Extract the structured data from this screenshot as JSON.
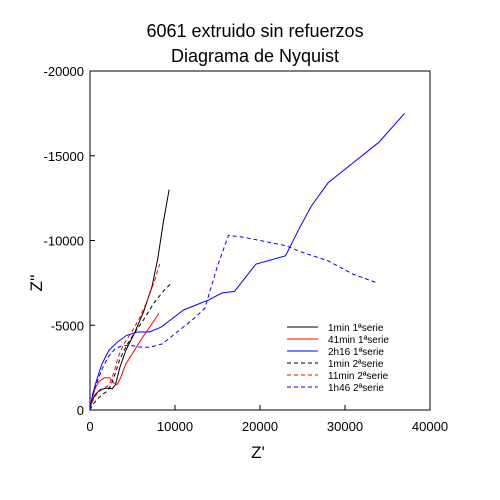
{
  "chart_data": {
    "type": "line",
    "title": "6061 extruido sin refuerzos",
    "subtitle": "Diagrama de Nyquist",
    "xlabel": "Z'",
    "ylabel": "Z''",
    "xlim": [
      0,
      40000
    ],
    "ylim": [
      0,
      -20000
    ],
    "x_ticks": [
      0,
      10000,
      20000,
      30000,
      40000
    ],
    "x_tick_labels": [
      "0",
      "10000",
      "20000",
      "30000",
      "40000"
    ],
    "y_ticks": [
      0,
      -5000,
      -10000,
      -15000,
      -20000
    ],
    "y_tick_labels": [
      "0",
      "-5000",
      "-10000",
      "-15000",
      "-20000"
    ],
    "grid": false,
    "legend_position": "bottom-right",
    "series": [
      {
        "name": "1min 1ªserie",
        "color": "#000000",
        "dash": "solid",
        "points": [
          [
            0,
            0
          ],
          [
            200,
            -500
          ],
          [
            600,
            -900
          ],
          [
            1200,
            -1200
          ],
          [
            2000,
            -1300
          ],
          [
            2600,
            -1250
          ],
          [
            3000,
            -1500
          ],
          [
            3500,
            -2500
          ],
          [
            4200,
            -3500
          ],
          [
            5200,
            -4500
          ],
          [
            6300,
            -5800
          ],
          [
            7300,
            -7300
          ],
          [
            8000,
            -9000
          ],
          [
            8600,
            -11000
          ],
          [
            9300,
            -13000
          ]
        ]
      },
      {
        "name": "41min 1ªserie",
        "color": "#ff0000",
        "dash": "solid",
        "points": [
          [
            0,
            0
          ],
          [
            200,
            -600
          ],
          [
            600,
            -1300
          ],
          [
            1100,
            -1700
          ],
          [
            1700,
            -1900
          ],
          [
            2300,
            -1900
          ],
          [
            2800,
            -1600
          ],
          [
            3200,
            -1500
          ],
          [
            3600,
            -1900
          ],
          [
            4200,
            -2700
          ],
          [
            5200,
            -3500
          ],
          [
            6200,
            -4300
          ],
          [
            7300,
            -5100
          ],
          [
            8100,
            -5700
          ]
        ]
      },
      {
        "name": "2h16 1ªserie",
        "color": "#0000ff",
        "dash": "solid",
        "points": [
          [
            0,
            0
          ],
          [
            300,
            -900
          ],
          [
            800,
            -1800
          ],
          [
            1400,
            -2700
          ],
          [
            2200,
            -3500
          ],
          [
            3200,
            -4000
          ],
          [
            4300,
            -4400
          ],
          [
            5600,
            -4600
          ],
          [
            7000,
            -4600
          ],
          [
            8400,
            -4900
          ],
          [
            9700,
            -5400
          ],
          [
            11000,
            -5900
          ],
          [
            12500,
            -6200
          ],
          [
            14000,
            -6500
          ],
          [
            15500,
            -6900
          ],
          [
            17000,
            -7000
          ],
          [
            19500,
            -8600
          ],
          [
            23000,
            -9100
          ],
          [
            24500,
            -10600
          ],
          [
            26000,
            -12000
          ],
          [
            28000,
            -13400
          ],
          [
            31000,
            -14600
          ],
          [
            34000,
            -15800
          ],
          [
            37000,
            -17500
          ]
        ]
      },
      {
        "name": "1min 2ªserie",
        "color": "#000000",
        "dash": "dashed",
        "points": [
          [
            0,
            0
          ],
          [
            300,
            -300
          ],
          [
            800,
            -600
          ],
          [
            1400,
            -900
          ],
          [
            2000,
            -1100
          ],
          [
            2500,
            -1500
          ],
          [
            3000,
            -2200
          ],
          [
            3500,
            -3000
          ],
          [
            4300,
            -3800
          ],
          [
            5300,
            -4600
          ],
          [
            6400,
            -5400
          ],
          [
            7500,
            -6300
          ],
          [
            8600,
            -7000
          ],
          [
            9600,
            -7500
          ]
        ]
      },
      {
        "name": "11min 2ªserie",
        "color": "#ff0000",
        "dash": "dashed",
        "points": [
          [
            0,
            0
          ],
          [
            200,
            -400
          ],
          [
            600,
            -800
          ],
          [
            1100,
            -1100
          ],
          [
            1700,
            -1300
          ],
          [
            2300,
            -1500
          ],
          [
            2800,
            -2200
          ],
          [
            3300,
            -3100
          ],
          [
            4000,
            -3900
          ],
          [
            4900,
            -4600
          ],
          [
            5800,
            -5400
          ],
          [
            6700,
            -6400
          ],
          [
            7500,
            -7500
          ],
          [
            8200,
            -8600
          ]
        ]
      },
      {
        "name": "1h46 2ªserie",
        "color": "#0000ff",
        "dash": "dashed",
        "points": [
          [
            0,
            0
          ],
          [
            300,
            -800
          ],
          [
            800,
            -1600
          ],
          [
            1400,
            -2400
          ],
          [
            2100,
            -3100
          ],
          [
            2900,
            -3600
          ],
          [
            3800,
            -3800
          ],
          [
            5000,
            -3800
          ],
          [
            6000,
            -3700
          ],
          [
            7000,
            -3700
          ],
          [
            8500,
            -3900
          ],
          [
            10000,
            -4500
          ],
          [
            12000,
            -5300
          ],
          [
            13500,
            -6000
          ],
          [
            15000,
            -8500
          ],
          [
            16300,
            -10300
          ],
          [
            18000,
            -10200
          ],
          [
            20000,
            -10000
          ],
          [
            23000,
            -9700
          ],
          [
            25000,
            -9300
          ],
          [
            28000,
            -8800
          ],
          [
            31000,
            -8000
          ],
          [
            33800,
            -7500
          ]
        ]
      }
    ]
  }
}
